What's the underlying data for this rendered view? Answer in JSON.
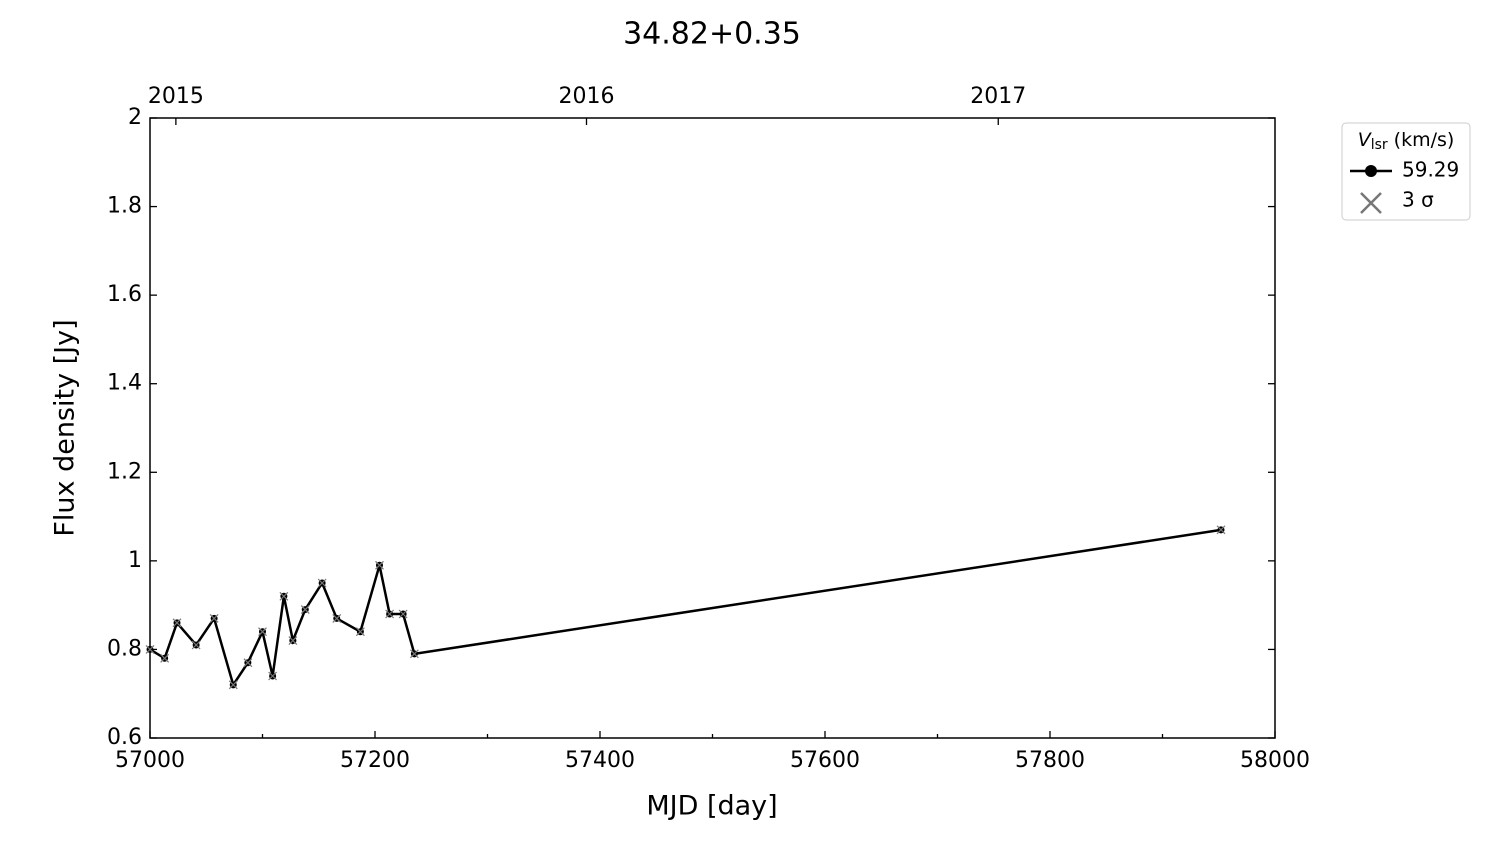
{
  "chart_data": {
    "type": "line",
    "title": "34.82+0.35",
    "x_label": "MJD [day]",
    "y_label": "Flux density [Jy]",
    "x": [
      57000,
      57013,
      57024,
      57041,
      57057,
      57074,
      57087,
      57100,
      57109,
      57119,
      57127,
      57138,
      57153,
      57166,
      57187,
      57204,
      57213,
      57225,
      57235,
      57952
    ],
    "series": [
      {
        "name": "59.29",
        "color": "#000000",
        "values": [
          0.8,
          0.78,
          0.86,
          0.81,
          0.87,
          0.72,
          0.77,
          0.84,
          0.74,
          0.92,
          0.82,
          0.89,
          0.95,
          0.87,
          0.84,
          0.99,
          0.88,
          0.88,
          0.79,
          1.07
        ]
      }
    ],
    "sigma_label": "3 σ",
    "sigma_color": "#777777",
    "legend_title": {
      "symbol": "V",
      "subscript": "lsr",
      "unit": "(km/s)"
    },
    "legend_position": "outside upper right",
    "xlim": [
      57000,
      58000
    ],
    "ylim": [
      0.6,
      2.0
    ],
    "xticks": [
      57000,
      57200,
      57400,
      57600,
      57800,
      58000
    ],
    "xminorticks": [
      57100,
      57300,
      57500,
      57700,
      57900
    ],
    "yticks": [
      0.6,
      0.8,
      1.0,
      1.2,
      1.4,
      1.6,
      1.8,
      2.0
    ],
    "top_xticks": [
      {
        "value": 57023,
        "label": "2015"
      },
      {
        "value": 57388,
        "label": "2016"
      },
      {
        "value": 57754,
        "label": "2017"
      }
    ]
  }
}
